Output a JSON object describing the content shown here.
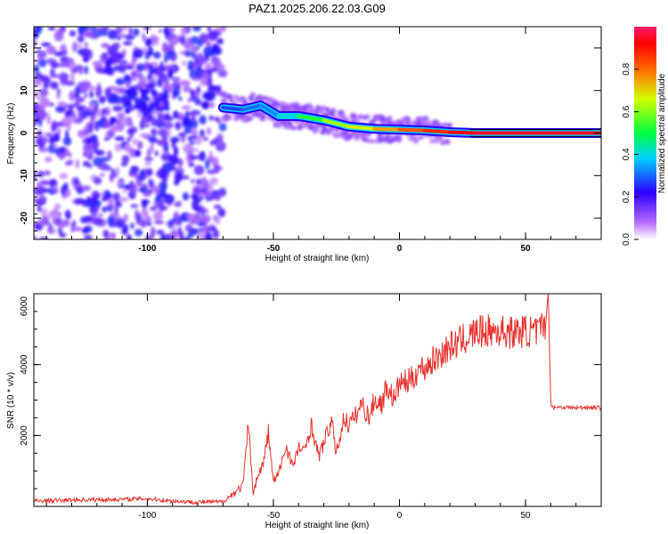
{
  "title": "PAZ1.2025.206.22.03.G09",
  "chart_data": [
    {
      "type": "heatmap",
      "xlabel": "Height of straight line (km)",
      "ylabel": "Frequency (Hz)",
      "xlim": [
        -145,
        80
      ],
      "ylim": [
        -25,
        25
      ],
      "x_ticks": [
        -100,
        -50,
        0,
        50
      ],
      "x_tick_labels": [
        "-100",
        "-50",
        "0",
        "50"
      ],
      "y_ticks": [
        -20,
        -10,
        0,
        10,
        20
      ],
      "y_tick_labels": [
        "-20",
        "-10",
        "0",
        "10",
        "20"
      ],
      "colorbar": {
        "label": "Normalized spectral amplitude",
        "range": [
          0,
          1
        ],
        "ticks": [
          0.0,
          0.2,
          0.4,
          0.6,
          0.8
        ],
        "tick_labels": [
          "0.0",
          "0.2",
          "0.4",
          "0.6",
          "0.8"
        ],
        "colormap": "rainbow (white-violet-blue-cyan-green-yellow-red-magenta)"
      },
      "signal_track": [
        {
          "x": -70,
          "freq": 6.0,
          "amp": 0.25
        },
        {
          "x": -62,
          "freq": 5.5,
          "amp": 0.3
        },
        {
          "x": -55,
          "freq": 6.5,
          "amp": 0.3
        },
        {
          "x": -48,
          "freq": 4.0,
          "amp": 0.35
        },
        {
          "x": -40,
          "freq": 4.0,
          "amp": 0.45
        },
        {
          "x": -30,
          "freq": 3.0,
          "amp": 0.6
        },
        {
          "x": -20,
          "freq": 1.5,
          "amp": 0.65
        },
        {
          "x": -10,
          "freq": 1.0,
          "amp": 0.7
        },
        {
          "x": 0,
          "freq": 0.8,
          "amp": 0.8
        },
        {
          "x": 10,
          "freq": 0.6,
          "amp": 0.85
        },
        {
          "x": 20,
          "freq": 0.2,
          "amp": 0.9
        },
        {
          "x": 30,
          "freq": 0.0,
          "amp": 0.95
        },
        {
          "x": 50,
          "freq": 0.0,
          "amp": 0.95
        },
        {
          "x": 80,
          "freq": 0.0,
          "amp": 0.95
        }
      ],
      "noise_region": {
        "x_from": -145,
        "x_to": -70,
        "amp": 0.2
      }
    },
    {
      "type": "line",
      "xlabel": "Height of straight line (km)",
      "ylabel": "SNR (10 * v/v)",
      "xlim": [
        -145,
        80
      ],
      "ylim": [
        0,
        6000
      ],
      "x_ticks": [
        -100,
        -50,
        0,
        50
      ],
      "x_tick_labels": [
        "-100",
        "-50",
        "0",
        "50"
      ],
      "y_ticks": [
        2000,
        4000,
        6000
      ],
      "y_tick_labels": [
        "2000",
        "4000",
        "6000"
      ],
      "series": [
        {
          "color": "#e8322c",
          "x": [
            -145,
            -130,
            -110,
            -100,
            -90,
            -80,
            -70,
            -66,
            -62,
            -60,
            -58,
            -56,
            -54,
            -52,
            -50,
            -48,
            -45,
            -42,
            -40,
            -38,
            -35,
            -32,
            -30,
            -27,
            -25,
            -22,
            -20,
            -17,
            -15,
            -12,
            -10,
            -7,
            -5,
            -2,
            0,
            3,
            5,
            8,
            10,
            13,
            15,
            18,
            20,
            23,
            25,
            28,
            30,
            35,
            40,
            45,
            50,
            55,
            58,
            59,
            60,
            61,
            65,
            70,
            75,
            80
          ],
          "y": [
            150,
            180,
            200,
            220,
            150,
            120,
            130,
            350,
            600,
            2300,
            400,
            900,
            1200,
            2100,
            700,
            900,
            1700,
            1100,
            1700,
            1500,
            2300,
            1400,
            1800,
            2400,
            1500,
            2500,
            2300,
            2600,
            2900,
            2500,
            3000,
            2900,
            3400,
            3000,
            3500,
            3500,
            3600,
            3900,
            3900,
            4100,
            4200,
            4400,
            4500,
            4600,
            4700,
            4800,
            4900,
            4950,
            4950,
            4900,
            4950,
            4900,
            5200,
            6000,
            2900,
            2800,
            2800,
            2780,
            2800,
            2780
          ]
        }
      ]
    }
  ]
}
